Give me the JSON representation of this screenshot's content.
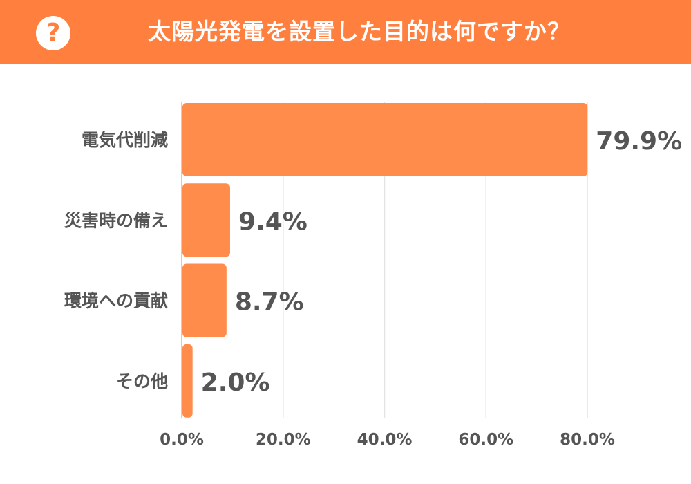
{
  "header": {
    "icon": "question-icon",
    "icon_glyph": "?",
    "title": "太陽光発電を設置した目的は何ですか？"
  },
  "colors": {
    "header_bg": "#ff7f3f",
    "bar": "#ff8c4a",
    "text": "#555555",
    "grid": "#e3e3e3"
  },
  "chart_data": {
    "type": "bar",
    "orientation": "horizontal",
    "categories": [
      "電気代削減",
      "災害時の備え",
      "環境への貢献",
      "その他"
    ],
    "values": [
      79.9,
      9.4,
      8.7,
      2.0
    ],
    "value_labels": [
      "79.9%",
      "9.4%",
      "8.7%",
      "2.0%"
    ],
    "xlim": [
      0,
      80
    ],
    "x_ticks": [
      0,
      20,
      40,
      60,
      80
    ],
    "x_tick_labels": [
      "0.0%",
      "20.0%",
      "40.0%",
      "60.0%",
      "80.0%"
    ],
    "grid": true,
    "title": "",
    "xlabel": "",
    "ylabel": ""
  }
}
